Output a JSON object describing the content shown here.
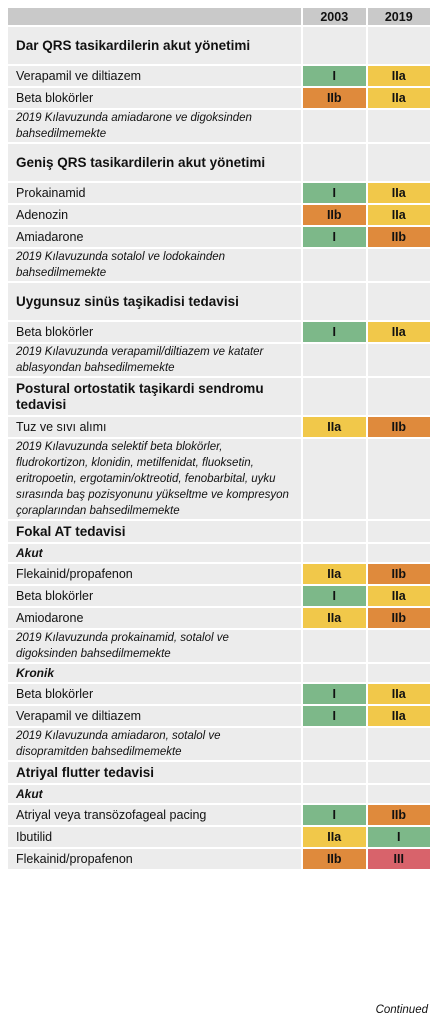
{
  "header": {
    "columns": [
      "2003",
      "2019"
    ]
  },
  "rows": [
    {
      "kind": "section",
      "text": "Dar QRS tasikardilerin akut yönetimi"
    },
    {
      "kind": "item",
      "text": "Verapamil ve diltiazem",
      "ratings": [
        {
          "label": "I",
          "color": "#7db889"
        },
        {
          "label": "IIa",
          "color": "#f1c84a"
        }
      ]
    },
    {
      "kind": "item",
      "text": "Beta blokörler",
      "ratings": [
        {
          "label": "IIb",
          "color": "#df8a3c"
        },
        {
          "label": "IIa",
          "color": "#f1c84a"
        }
      ]
    },
    {
      "kind": "note",
      "text": "2019 Kılavuzunda amiadarone ve digoksinden bahsedilmemekte"
    },
    {
      "kind": "section",
      "text": "Geniş QRS tasikardilerin akut yönetimi"
    },
    {
      "kind": "item",
      "text": "Prokainamid",
      "ratings": [
        {
          "label": "I",
          "color": "#7db889"
        },
        {
          "label": "IIa",
          "color": "#f1c84a"
        }
      ]
    },
    {
      "kind": "item",
      "text": "Adenozin",
      "ratings": [
        {
          "label": "IIb",
          "color": "#df8a3c"
        },
        {
          "label": "IIa",
          "color": "#f1c84a"
        }
      ]
    },
    {
      "kind": "item",
      "text": "Amiadarone",
      "ratings": [
        {
          "label": "I",
          "color": "#7db889"
        },
        {
          "label": "IIb",
          "color": "#df8a3c"
        }
      ]
    },
    {
      "kind": "note",
      "text": "2019 Kılavuzunda sotalol ve lodokainden bahsedilmemekte"
    },
    {
      "kind": "section",
      "text": "Uygunsuz sinüs taşikadisi tedavisi"
    },
    {
      "kind": "item",
      "text": "Beta blokörler",
      "ratings": [
        {
          "label": "I",
          "color": "#7db889"
        },
        {
          "label": "IIa",
          "color": "#f1c84a"
        }
      ]
    },
    {
      "kind": "note",
      "text": "2019 Kılavuzunda verapamil/diltiazem ve katater ablasyondan bahsedilmemekte"
    },
    {
      "kind": "section",
      "text": "Postural ortostatik taşikardi sendromu tedavisi"
    },
    {
      "kind": "item",
      "text": "Tuz ve sıvı alımı",
      "ratings": [
        {
          "label": "IIa",
          "color": "#f1c84a"
        },
        {
          "label": "IIb",
          "color": "#df8a3c"
        }
      ]
    },
    {
      "kind": "note",
      "text": "2019 Kılavuzunda selektif beta blokörler, fludrokortizon, klonidin, metilfenidat, fluoksetin, eritropoetin, ergotamin/oktreotid, fenobarbital, uyku sırasında baş pozisyonunu yükseltme ve kompresyon çoraplarından bahsedilmemekte"
    },
    {
      "kind": "section",
      "text": "Fokal AT tedavisi"
    },
    {
      "kind": "subsection",
      "text": "Akut"
    },
    {
      "kind": "item",
      "text": "Flekainid/propafenon",
      "ratings": [
        {
          "label": "IIa",
          "color": "#f1c84a"
        },
        {
          "label": "IIb",
          "color": "#df8a3c"
        }
      ]
    },
    {
      "kind": "item",
      "text": "Beta blokörler",
      "ratings": [
        {
          "label": "I",
          "color": "#7db889"
        },
        {
          "label": "IIa",
          "color": "#f1c84a"
        }
      ]
    },
    {
      "kind": "item",
      "text": "Amiodarone",
      "ratings": [
        {
          "label": "IIa",
          "color": "#f1c84a"
        },
        {
          "label": "IIb",
          "color": "#df8a3c"
        }
      ]
    },
    {
      "kind": "note",
      "text": "2019 Kılavuzunda prokainamid, sotalol ve digoksinden bahsedilmemekte"
    },
    {
      "kind": "subsection",
      "text": "Kronik"
    },
    {
      "kind": "item",
      "text": "Beta blokörler",
      "ratings": [
        {
          "label": "I",
          "color": "#7db889"
        },
        {
          "label": "IIa",
          "color": "#f1c84a"
        }
      ]
    },
    {
      "kind": "item",
      "text": "Verapamil ve diltiazem",
      "ratings": [
        {
          "label": "I",
          "color": "#7db889"
        },
        {
          "label": "IIa",
          "color": "#f1c84a"
        }
      ]
    },
    {
      "kind": "note",
      "text": "2019 Kılavuzunda amiadaron, sotalol ve disopramitden bahsedilmemekte"
    },
    {
      "kind": "section",
      "text": "Atriyal flutter tedavisi"
    },
    {
      "kind": "subsection",
      "text": "Akut"
    },
    {
      "kind": "item",
      "text": "Atriyal veya transözofageal pacing",
      "ratings": [
        {
          "label": "I",
          "color": "#7db889"
        },
        {
          "label": "IIb",
          "color": "#df8a3c"
        }
      ]
    },
    {
      "kind": "item",
      "text": "Ibutilid",
      "ratings": [
        {
          "label": "IIa",
          "color": "#f1c84a"
        },
        {
          "label": "I",
          "color": "#7db889"
        }
      ]
    },
    {
      "kind": "item",
      "text": "Flekainid/propafenon",
      "ratings": [
        {
          "label": "IIb",
          "color": "#df8a3c"
        },
        {
          "label": "III",
          "color": "#d8636b"
        }
      ]
    }
  ],
  "footer": "Continued"
}
